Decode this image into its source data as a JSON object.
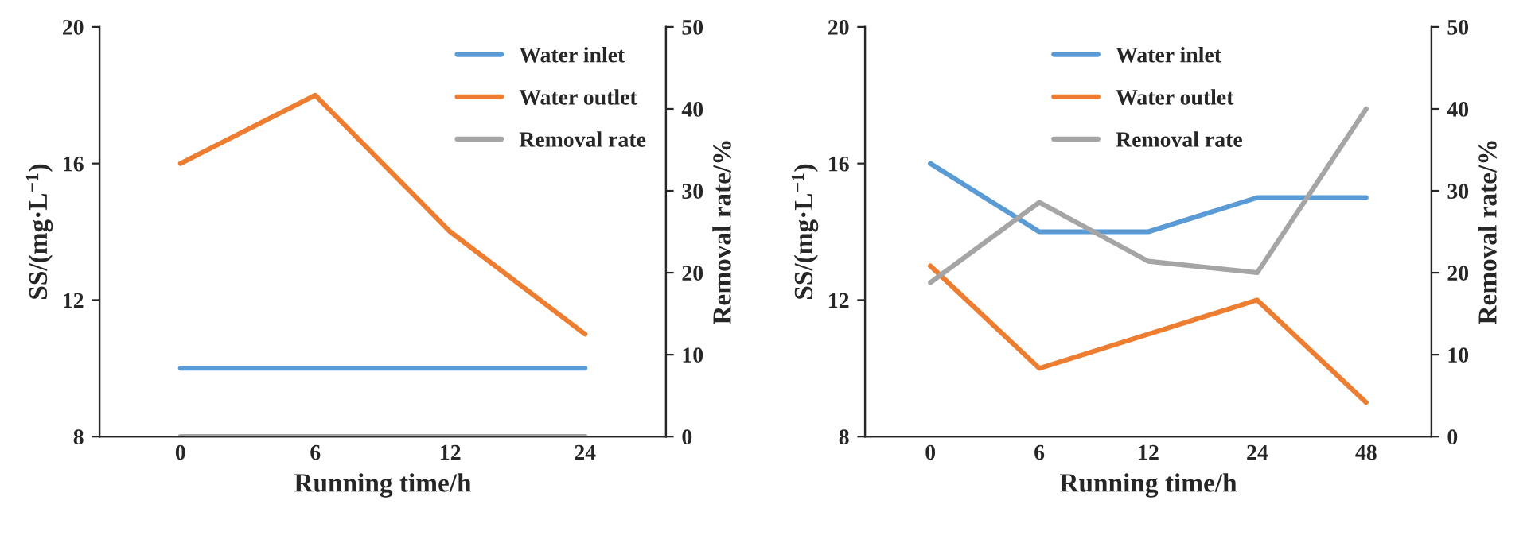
{
  "chart_data": [
    {
      "type": "line",
      "xlabel": "Running time/h",
      "ylabel": "SS/(mg·L$^{−1}$)",
      "y2label": "Removal rate/%",
      "categories": [
        "0",
        "6",
        "12",
        "24"
      ],
      "series": [
        {
          "name": "Water inlet",
          "color": "#5b9bd5",
          "values": [
            10,
            10,
            10,
            10
          ]
        },
        {
          "name": "Water outlet",
          "color": "#ed7d31",
          "values": [
            16,
            18,
            14,
            11
          ]
        },
        {
          "name": "Removal rate",
          "color": "#a5a5a5",
          "values": [
            0,
            0,
            0,
            0
          ],
          "axis": "y2"
        }
      ],
      "ylim": [
        8,
        20
      ],
      "yticks": [
        8,
        12,
        16,
        20
      ],
      "y2lim": [
        0,
        50
      ],
      "y2ticks": [
        0,
        10,
        20,
        30,
        40,
        50
      ],
      "grid": false,
      "legend": "top right",
      "marker": "none",
      "line_style": "solid"
    },
    {
      "type": "line",
      "xlabel": "Running time/h",
      "ylabel": "SS/(mg·L$^{−1}$)",
      "y2label": "Removal rate/%",
      "categories": [
        "0",
        "6",
        "12",
        "24",
        "48"
      ],
      "series": [
        {
          "name": "Water inlet",
          "color": "#5b9bd5",
          "values": [
            16,
            14,
            14,
            15,
            15
          ]
        },
        {
          "name": "Water outlet",
          "color": "#ed7d31",
          "values": [
            13,
            10,
            11,
            12,
            9
          ]
        },
        {
          "name": "Removal rate",
          "color": "#a5a5a5",
          "values": [
            18.8,
            28.6,
            21.4,
            20,
            40
          ],
          "axis": "y2"
        }
      ],
      "ylim": [
        8,
        20
      ],
      "yticks": [
        8,
        12,
        16,
        20
      ],
      "y2lim": [
        0,
        50
      ],
      "y2ticks": [
        0,
        10,
        20,
        30,
        40,
        50
      ],
      "grid": false,
      "legend": "top",
      "marker": "none",
      "line_style": "solid"
    }
  ]
}
